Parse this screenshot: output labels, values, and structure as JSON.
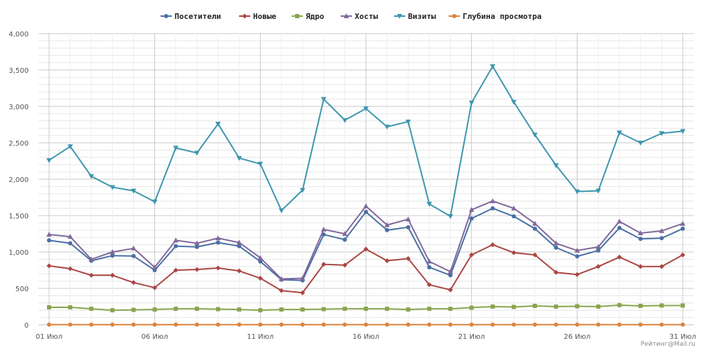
{
  "credit": "Рейтинг@Mail.ru",
  "chart_data": {
    "type": "line",
    "title": "",
    "xlabel": "",
    "ylabel": "",
    "ylim": [
      0,
      4000
    ],
    "yticks": [
      0,
      500,
      1000,
      1500,
      2000,
      2500,
      3000,
      3500,
      4000
    ],
    "ytick_labels": [
      "0",
      "500",
      "1,000",
      "1,500",
      "2,000",
      "2,500",
      "3,000",
      "3,500",
      "4,000"
    ],
    "x": [
      1,
      2,
      3,
      4,
      5,
      6,
      7,
      8,
      9,
      10,
      11,
      12,
      13,
      14,
      15,
      16,
      17,
      18,
      19,
      20,
      21,
      22,
      23,
      24,
      25,
      26,
      27,
      28,
      29,
      30,
      31
    ],
    "xticks": [
      1,
      6,
      11,
      16,
      21,
      26,
      31
    ],
    "xtick_labels": [
      "01 Июл",
      "06 Июл",
      "11 Июл",
      "16 Июл",
      "21 Июл",
      "26 Июл",
      "31 Июл"
    ],
    "grid": true,
    "legend_position": "top-center",
    "series": [
      {
        "name": "Посетители",
        "color": "#4a6fa5",
        "marker": "circle",
        "values": [
          1160,
          1120,
          880,
          950,
          945,
          750,
          1080,
          1070,
          1130,
          1080,
          870,
          620,
          610,
          1240,
          1170,
          1550,
          1300,
          1340,
          790,
          680,
          1460,
          1600,
          1490,
          1320,
          1060,
          940,
          1020,
          1330,
          1180,
          1190,
          1320
        ]
      },
      {
        "name": "Новые",
        "color": "#aa4643",
        "marker": "diamond",
        "values": [
          810,
          770,
          680,
          680,
          580,
          510,
          750,
          760,
          780,
          740,
          640,
          470,
          440,
          830,
          820,
          1040,
          880,
          910,
          550,
          480,
          960,
          1100,
          990,
          960,
          720,
          690,
          800,
          930,
          800,
          800,
          960
        ]
      },
      {
        "name": "Ядро",
        "color": "#89a54e",
        "marker": "square",
        "values": [
          240,
          240,
          220,
          200,
          205,
          210,
          220,
          220,
          215,
          210,
          200,
          210,
          210,
          215,
          220,
          220,
          220,
          210,
          220,
          220,
          235,
          250,
          245,
          260,
          250,
          255,
          250,
          270,
          260,
          265,
          265
        ]
      },
      {
        "name": "Хосты",
        "color": "#80699b",
        "marker": "triangle",
        "values": [
          1240,
          1210,
          900,
          1000,
          1050,
          790,
          1160,
          1120,
          1190,
          1130,
          920,
          630,
          640,
          1310,
          1250,
          1630,
          1370,
          1450,
          870,
          730,
          1580,
          1700,
          1600,
          1390,
          1120,
          1020,
          1070,
          1420,
          1260,
          1290,
          1390
        ]
      },
      {
        "name": "Визиты",
        "color": "#3d96ae",
        "marker": "triangle-down",
        "values": [
          2260,
          2450,
          2040,
          1890,
          1840,
          1690,
          2430,
          2360,
          2760,
          2290,
          2210,
          1570,
          1850,
          3100,
          2810,
          2970,
          2720,
          2790,
          1660,
          1490,
          3050,
          3550,
          3060,
          2610,
          2190,
          1830,
          1840,
          2640,
          2500,
          2630,
          2660
        ]
      },
      {
        "name": "Глубина просмотра",
        "color": "#db843d",
        "marker": "circle",
        "values": [
          1.9,
          1.9,
          1.9,
          1.9,
          1.9,
          1.9,
          1.9,
          1.9,
          1.9,
          1.9,
          1.9,
          1.9,
          1.9,
          1.9,
          1.9,
          1.9,
          1.9,
          1.9,
          1.9,
          1.9,
          1.9,
          1.9,
          1.9,
          1.9,
          1.9,
          1.9,
          1.9,
          1.9,
          1.9,
          1.9,
          1.9
        ]
      }
    ]
  }
}
